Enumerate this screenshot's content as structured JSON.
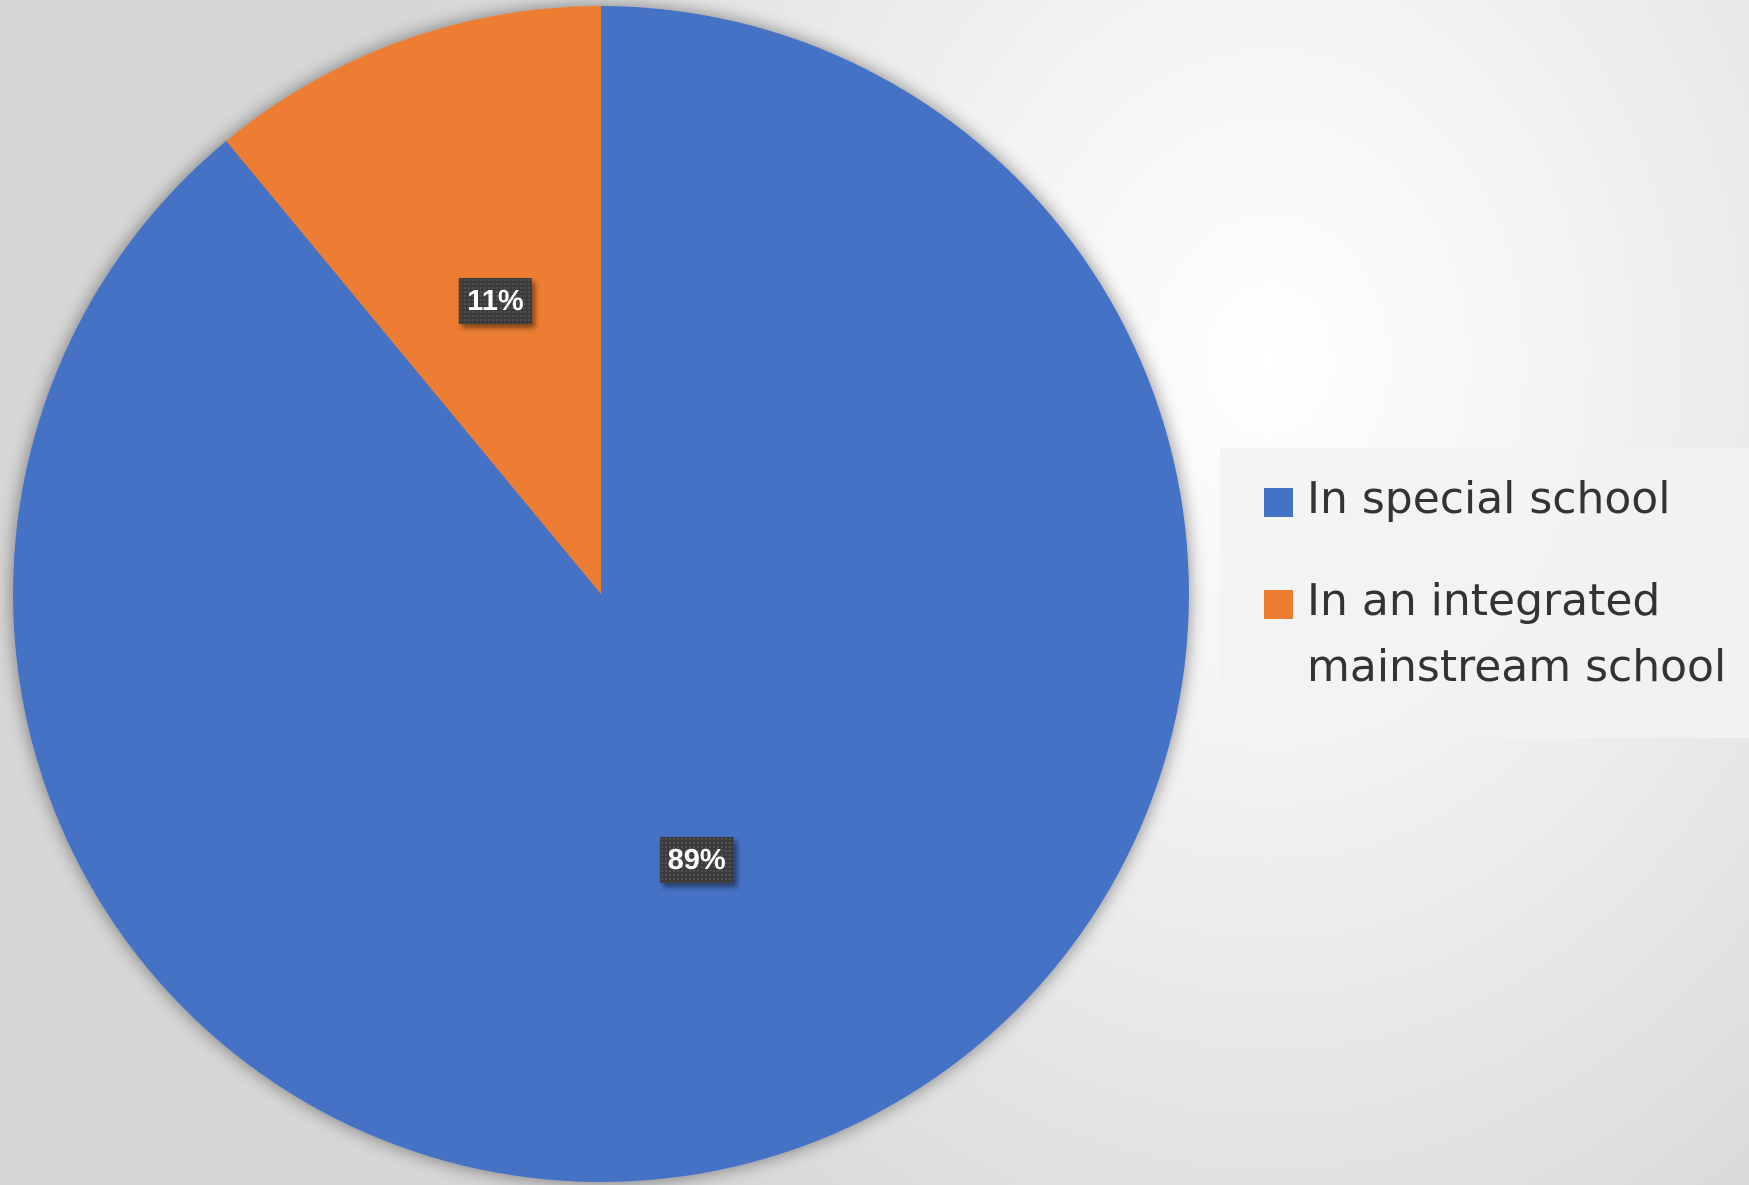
{
  "chart_data": {
    "type": "pie",
    "title": "",
    "slices": [
      {
        "label": "In special school",
        "value": 89,
        "display": "89%",
        "color": "#4472c4"
      },
      {
        "label": "In an integrated mainstream school",
        "value": 11,
        "display": "11%",
        "color": "#ed7d31"
      }
    ],
    "start_angle_deg": 0,
    "direction": "clockwise",
    "legend_position": "right",
    "data_labels": "percent"
  }
}
